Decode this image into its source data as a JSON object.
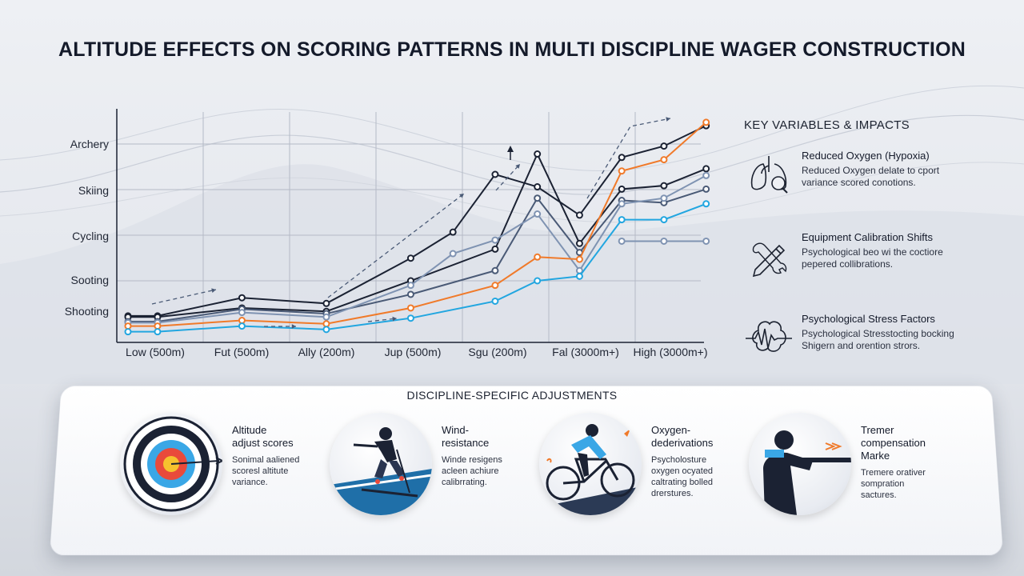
{
  "title": "ALTITUDE EFFECTS ON SCORING PATTERNS IN MULTI DISCIPLINE WAGER CONSTRUCTION",
  "colors": {
    "navy": "#1b2233",
    "slate": "#4a5a76",
    "steel": "#7f93b2",
    "orange": "#f07a2a",
    "cyan": "#22a6e0",
    "grid": "#b4bac6"
  },
  "chart_data": {
    "type": "line",
    "categories": [
      "Low (500m)",
      "Fut (500m)",
      "Ally (200m)",
      "Jup (500m)",
      "Sgu (200m)",
      "Fal (3000m+)",
      "High (3000m+)"
    ],
    "y_category_labels": [
      "Archery",
      "Skiing",
      "Cycling",
      "Sooting",
      "Shooting"
    ],
    "legend": "none",
    "grid": true,
    "series": [
      {
        "color": "#1b2233",
        "points": [
          [
            0,
            1.1
          ],
          [
            0.35,
            1.1
          ],
          [
            1.35,
            1.9
          ],
          [
            2.35,
            1.65
          ],
          [
            3.35,
            3.65
          ],
          [
            3.85,
            4.8
          ],
          [
            4.35,
            7.35
          ],
          [
            4.85,
            6.8
          ],
          [
            5.35,
            5.55
          ],
          [
            5.85,
            8.1
          ],
          [
            6.35,
            8.6
          ],
          [
            6.85,
            9.5
          ]
        ]
      },
      {
        "color": "#1b2233",
        "points": [
          [
            0,
            1.05
          ],
          [
            0.35,
            1.05
          ],
          [
            1.35,
            1.45
          ],
          [
            2.35,
            1.3
          ],
          [
            3.35,
            2.65
          ],
          [
            4.35,
            4.05
          ],
          [
            4.85,
            8.25
          ],
          [
            5.35,
            4.3
          ],
          [
            5.85,
            6.7
          ],
          [
            6.35,
            6.85
          ],
          [
            6.85,
            7.6
          ]
        ]
      },
      {
        "color": "#4a5a76",
        "points": [
          [
            0,
            0.85
          ],
          [
            0.35,
            0.85
          ],
          [
            1.35,
            1.4
          ],
          [
            2.35,
            1.2
          ],
          [
            3.35,
            2.05
          ],
          [
            4.35,
            3.1
          ],
          [
            4.85,
            6.3
          ],
          [
            5.35,
            3.9
          ],
          [
            5.85,
            6.2
          ],
          [
            6.35,
            6.1
          ],
          [
            6.85,
            6.7
          ]
        ]
      },
      {
        "color": "#7f93b2",
        "points": [
          [
            0,
            0.8
          ],
          [
            0.35,
            0.8
          ],
          [
            1.35,
            1.25
          ],
          [
            2.35,
            1.05
          ],
          [
            3.35,
            2.45
          ],
          [
            3.85,
            3.85
          ],
          [
            4.35,
            4.45
          ],
          [
            4.85,
            5.6
          ],
          [
            5.35,
            3.1
          ],
          [
            5.85,
            6.05
          ],
          [
            6.35,
            6.3
          ],
          [
            6.85,
            7.3
          ]
        ]
      },
      {
        "color": "#f07a2a",
        "points": [
          [
            0,
            0.65
          ],
          [
            0.35,
            0.65
          ],
          [
            1.35,
            0.9
          ],
          [
            2.35,
            0.75
          ],
          [
            3.35,
            1.45
          ],
          [
            4.35,
            2.45
          ],
          [
            4.85,
            3.7
          ],
          [
            5.35,
            3.6
          ],
          [
            5.85,
            7.5
          ],
          [
            6.35,
            8.0
          ],
          [
            6.85,
            9.65
          ]
        ]
      },
      {
        "color": "#22a6e0",
        "points": [
          [
            0,
            0.4
          ],
          [
            0.35,
            0.4
          ],
          [
            1.35,
            0.65
          ],
          [
            2.35,
            0.5
          ],
          [
            3.35,
            1.0
          ],
          [
            4.35,
            1.75
          ],
          [
            4.85,
            2.65
          ],
          [
            5.35,
            2.85
          ],
          [
            5.85,
            5.35
          ],
          [
            6.35,
            5.35
          ],
          [
            6.85,
            6.05
          ]
        ]
      },
      {
        "color": "#7f93b2",
        "points": [
          [
            5.85,
            4.4
          ],
          [
            6.35,
            4.4
          ],
          [
            6.85,
            4.4
          ]
        ]
      }
    ]
  },
  "key_variables": {
    "heading": "KEY VARIABLES & IMPACTS",
    "items": [
      {
        "icon": "lungs-icon",
        "title": "Reduced Oxygen (Hypoxia)",
        "desc": [
          "Reduced Oxygen delate to cport",
          "variance scored conotions."
        ]
      },
      {
        "icon": "pencil-wrench-icon",
        "title": "Equipment Calibration Shifts",
        "desc": [
          "Psychological beo wi the coctiore",
          "pepered collibrations."
        ]
      },
      {
        "icon": "brain-pulse-icon",
        "title": "Psychological Stress Factors",
        "desc": [
          "Psychological Stresstocting bocking",
          "Shigern and orention strors."
        ]
      }
    ]
  },
  "adjustments": {
    "heading": "DISCIPLINE-SPECIFIC ADJUSTMENTS",
    "items": [
      {
        "icon": "archery-target-icon",
        "title": [
          "Altitude",
          "adjust scores"
        ],
        "desc": [
          "Sonimal aaliened",
          "scoresl altitute",
          "variance."
        ]
      },
      {
        "icon": "skier-icon",
        "title": [
          "Wind-",
          "resistance"
        ],
        "desc": [
          "Winde resigens",
          "acleen achiure",
          "calibrrating."
        ]
      },
      {
        "icon": "cyclist-icon",
        "title": [
          "Oxygen-",
          "dederivations"
        ],
        "desc": [
          "Psycholosture",
          "oxygen ocyated",
          "caltrating bolled",
          "drerstures."
        ]
      },
      {
        "icon": "marksman-icon",
        "title": [
          "Tremer",
          "compensation",
          "Marke"
        ],
        "desc": [
          "Tremere orativer",
          "sompration",
          "sactures."
        ]
      }
    ]
  }
}
